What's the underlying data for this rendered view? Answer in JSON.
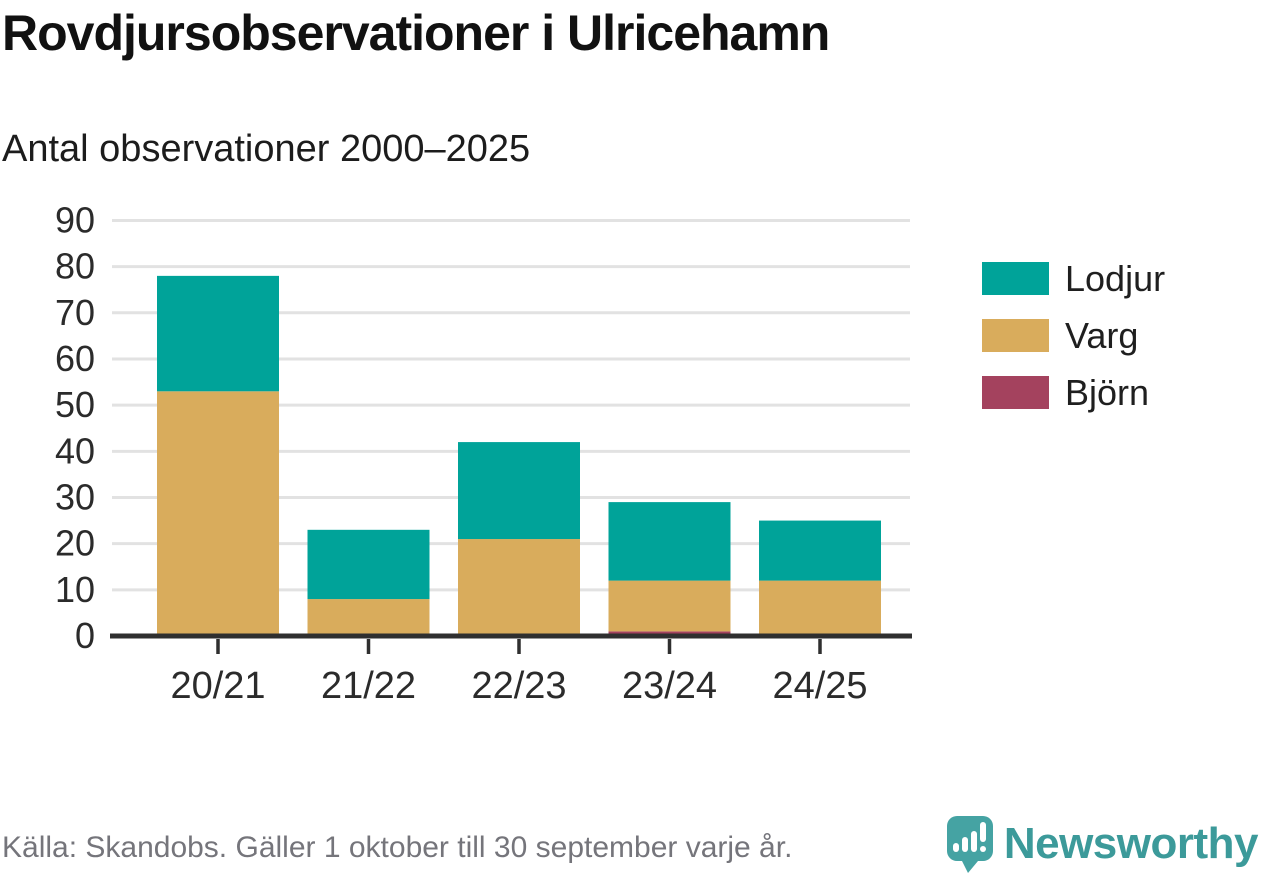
{
  "header": {
    "title": "Rovdjursobservationer i Ulricehamn",
    "subtitle": "Antal observationer 2000–2025"
  },
  "chart_data": {
    "type": "bar",
    "stacked": true,
    "title": "Rovdjursobservationer i Ulricehamn",
    "subtitle": "Antal observationer 2000–2025",
    "categories": [
      "20/21",
      "21/22",
      "22/23",
      "23/24",
      "24/25"
    ],
    "series": [
      {
        "name": "Lodjur",
        "color": "#00A399",
        "values": [
          25,
          15,
          21,
          17,
          13
        ]
      },
      {
        "name": "Varg",
        "color": "#D9AC5C",
        "values": [
          53,
          8,
          21,
          11,
          12
        ]
      },
      {
        "name": "Björn",
        "color": "#A4425E",
        "values": [
          0,
          0,
          0,
          1,
          0
        ]
      }
    ],
    "totals": [
      78,
      23,
      42,
      29,
      25
    ],
    "xlabel": "",
    "ylabel": "",
    "ylim": [
      0,
      90
    ],
    "ytick_step": 10,
    "grid": true,
    "legend_position": "right"
  },
  "footer": {
    "source": "Källa: Skandobs. Gäller 1 oktober till 30 september varje år.",
    "brand": "Newsworthy"
  },
  "colors": {
    "axis": "#2F2F2F",
    "grid": "#E2E2E2",
    "text": "#2B2B2B",
    "muted": "#75757B",
    "brand_teal": "#3C9A9A"
  }
}
